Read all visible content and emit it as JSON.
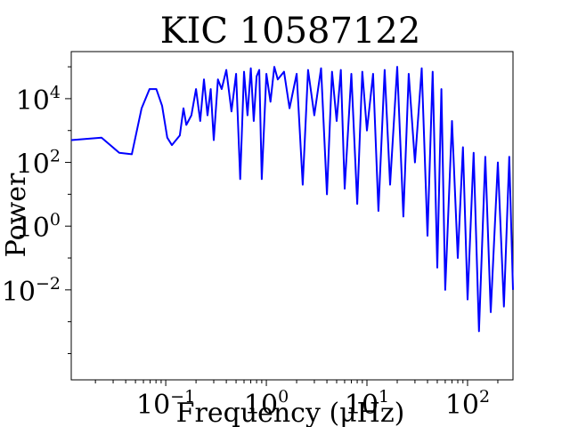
{
  "chart_data": {
    "type": "line",
    "title": "KIC 10587122",
    "xlabel": "Frequency (μHz)",
    "ylabel": "Power",
    "xscale": "log",
    "yscale": "log",
    "xlim": [
      0.0115,
      283
    ],
    "ylim": [
      1.5e-05,
      300000
    ],
    "grid": false,
    "x_ticks": [
      {
        "base": "10",
        "exp": "−1",
        "value": 0.1
      },
      {
        "base": "10",
        "exp": "0",
        "value": 1
      },
      {
        "base": "10",
        "exp": "1",
        "value": 10
      },
      {
        "base": "10",
        "exp": "2",
        "value": 100
      }
    ],
    "y_ticks": [
      {
        "base": "10",
        "exp": "−2",
        "value": 0.01
      },
      {
        "base": "10",
        "exp": "0",
        "value": 1
      },
      {
        "base": "10",
        "exp": "2",
        "value": 100
      },
      {
        "base": "10",
        "exp": "4",
        "value": 10000
      }
    ],
    "series": [
      {
        "color": "#0000ff",
        "x": [
          0.0115,
          0.023,
          0.0345,
          0.046,
          0.0575,
          0.069,
          0.0805,
          0.092,
          0.1035,
          0.115,
          0.138,
          0.15,
          0.16,
          0.18,
          0.2,
          0.22,
          0.24,
          0.26,
          0.28,
          0.3,
          0.33,
          0.36,
          0.4,
          0.45,
          0.5,
          0.55,
          0.6,
          0.65,
          0.7,
          0.75,
          0.8,
          0.85,
          0.9,
          1.0,
          1.1,
          1.2,
          1.3,
          1.5,
          1.7,
          2.0,
          2.3,
          2.6,
          3.0,
          3.5,
          4.0,
          4.5,
          5.0,
          5.5,
          6.0,
          7.0,
          8.0,
          9.0,
          10.0,
          11.5,
          13.0,
          15.0,
          17.0,
          20.0,
          23.0,
          26.0,
          30.0,
          35.0,
          40.0,
          45.0,
          50.0,
          55.0,
          60.0,
          70.0,
          80.0,
          90.0,
          100.0,
          115.0,
          130.0,
          150.0,
          170.0,
          200.0,
          230.0,
          260.0,
          283.0
        ],
        "y": [
          500,
          600,
          200,
          180,
          5000,
          20000,
          20000,
          6000,
          600,
          350,
          700,
          5000,
          1500,
          3000,
          20000,
          2000,
          40000,
          3000,
          20000,
          500,
          40000,
          20000,
          80000,
          4000,
          60000,
          30,
          70000,
          3000,
          90000,
          2000,
          50000,
          80000,
          30,
          60000,
          8000,
          100000,
          40000,
          70000,
          5000,
          60000,
          20,
          80000,
          3000,
          90000,
          10,
          70000,
          2000,
          80000,
          15,
          60000,
          5,
          70000,
          1000,
          60000,
          3,
          80000,
          20,
          100000,
          2,
          60000,
          100,
          90000,
          0.5,
          70000,
          0.05,
          20000,
          0.01,
          2000,
          0.1,
          300,
          0.005,
          200,
          0.0005,
          150,
          0.002,
          100,
          0.003,
          150,
          0.01
        ]
      }
    ]
  }
}
